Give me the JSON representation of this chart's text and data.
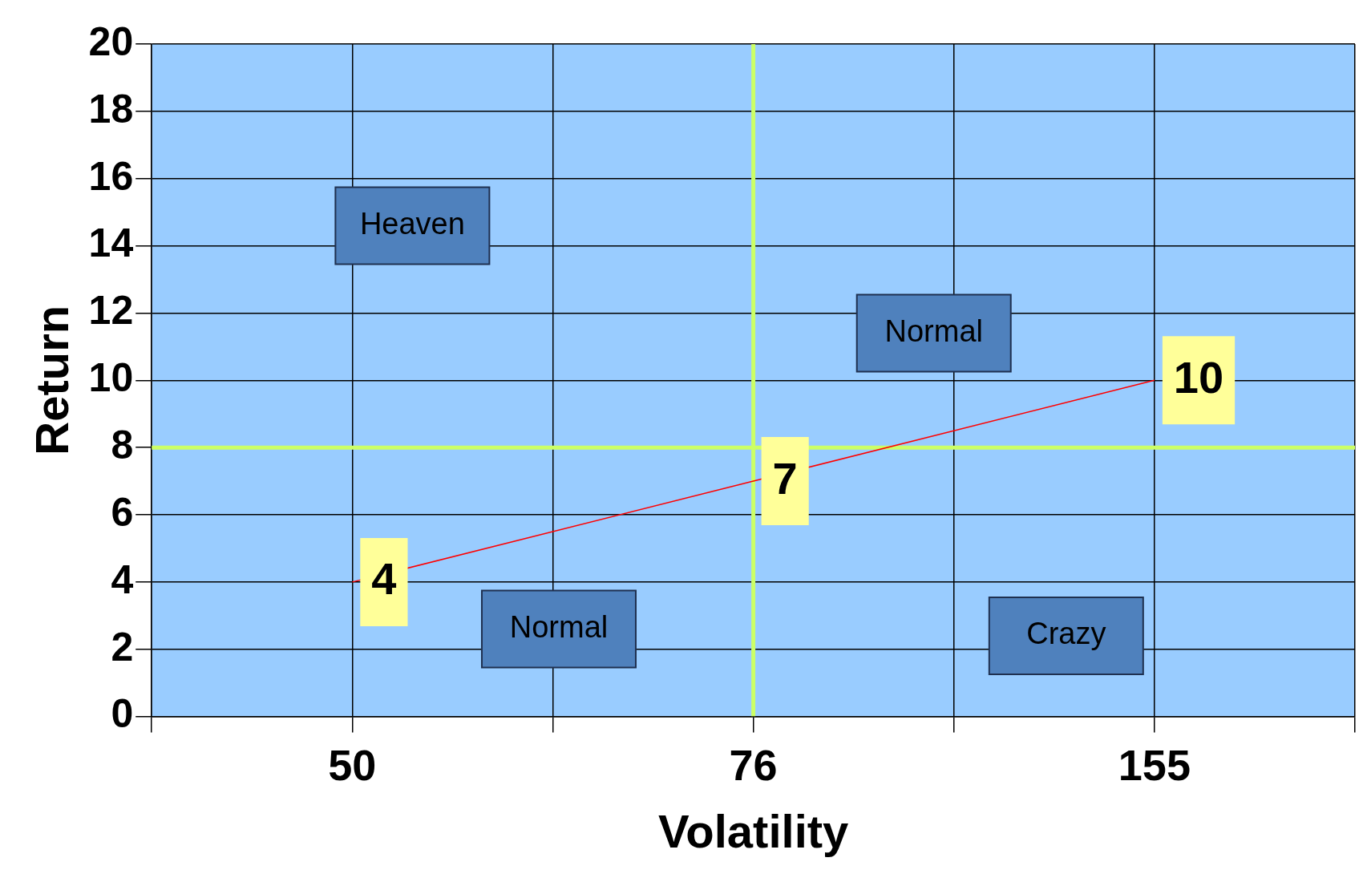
{
  "chart_data": {
    "type": "line",
    "xlabel": "Volatility",
    "ylabel": "Return",
    "categories": [
      null,
      "50",
      null,
      "76",
      null,
      "155",
      null
    ],
    "series": [
      {
        "color": "#ff0000",
        "values": [
          null,
          4,
          null,
          7,
          null,
          10,
          null
        ]
      }
    ],
    "ylim": [
      0,
      20
    ],
    "yticks": [
      0,
      2,
      4,
      6,
      8,
      10,
      12,
      14,
      16,
      18,
      20
    ],
    "grid": true,
    "legend": false,
    "marker": "none",
    "line_style": "solid",
    "data_labels": true,
    "ref_lines": [
      {
        "axis": "y",
        "value": 8,
        "color": "#ccff66"
      },
      {
        "axis": "x",
        "value": "76",
        "color": "#ccff66"
      }
    ],
    "annotations": [
      "Heaven",
      "Normal",
      "Normal",
      "Crazy"
    ]
  }
}
